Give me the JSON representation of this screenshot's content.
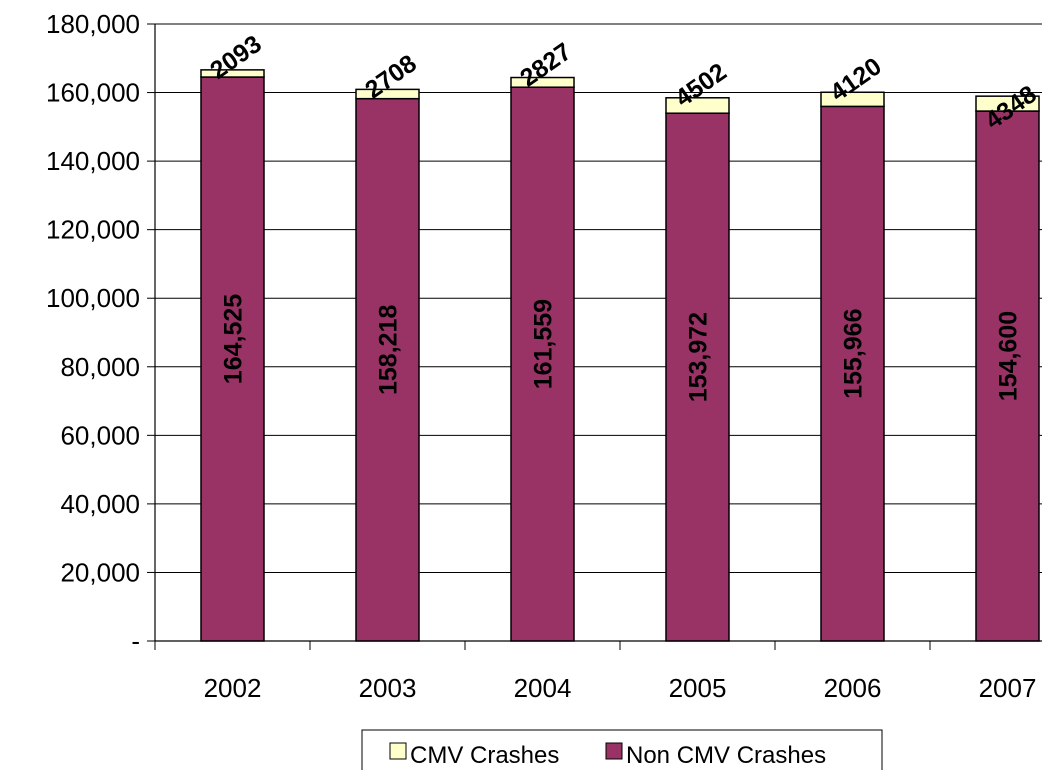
{
  "chart_data": {
    "type": "bar",
    "stacked": true,
    "categories": [
      "2002",
      "2003",
      "2004",
      "2005",
      "2006",
      "2007"
    ],
    "series": [
      {
        "name": "Non CMV Crashes",
        "values": [
          164525,
          158218,
          161559,
          153972,
          155966,
          154600
        ],
        "labels": [
          "164,525",
          "158,218",
          "161,559",
          "153,972",
          "155,966",
          "154,600"
        ],
        "color": "#993366"
      },
      {
        "name": "CMV Crashes",
        "values": [
          2093,
          2708,
          2827,
          4502,
          4120,
          4348
        ],
        "labels": [
          "2093",
          "2708",
          "2827",
          "4502",
          "4120",
          "4348"
        ],
        "color": "#FFFFCC"
      }
    ],
    "ylim": [
      0,
      180000
    ],
    "yticks": [
      0,
      20000,
      40000,
      60000,
      80000,
      100000,
      120000,
      140000,
      160000,
      180000
    ],
    "ytick_labels": [
      "-",
      "20,000",
      "40,000",
      "60,000",
      "80,000",
      "100,000",
      "120,000",
      "140,000",
      "160,000",
      "180,000"
    ],
    "grid": true,
    "legend_position": "bottom",
    "legend": [
      {
        "name": "CMV Crashes",
        "color": "#FFFFCC"
      },
      {
        "name": "Non CMV Crashes",
        "color": "#993366"
      }
    ]
  }
}
